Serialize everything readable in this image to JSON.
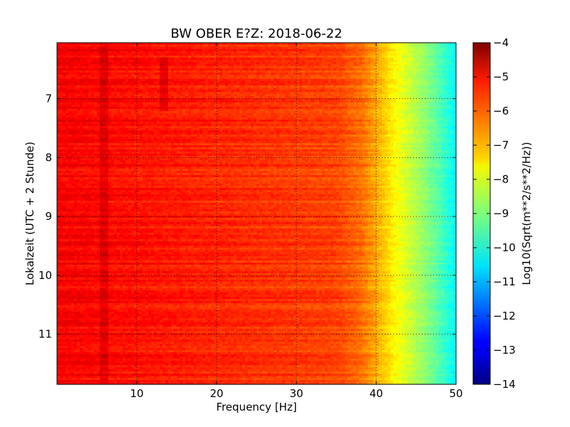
{
  "chart_data": {
    "type": "heatmap",
    "title": "BW OBER E?Z: 2018-06-22",
    "xlabel": "Frequency [Hz]",
    "ylabel": "Lokalzeit (UTC + 2 Stunde)",
    "xlim": [
      0,
      50
    ],
    "ylim": [
      11.85,
      6.05
    ],
    "y_inverted": true,
    "grid": true,
    "x_ticks": [
      "10",
      "20",
      "30",
      "40",
      "50"
    ],
    "x_tick_values": [
      10,
      20,
      30,
      40,
      50
    ],
    "y_ticks": [
      "7",
      "8",
      "9",
      "10",
      "11"
    ],
    "y_tick_values": [
      7,
      8,
      9,
      10,
      11
    ],
    "colorbar": {
      "label": "Log10(Sqrt(m**2/s**2/Hz))",
      "range": [
        -14,
        -4
      ],
      "ticks": [
        "−4",
        "−5",
        "−6",
        "−7",
        "−8",
        "−9",
        "−10",
        "−11",
        "−12",
        "−13",
        "−14"
      ],
      "tick_values": [
        -4,
        -5,
        -6,
        -7,
        -8,
        -9,
        -10,
        -11,
        -12,
        -13,
        -14
      ],
      "colormap": "jet"
    },
    "frequency_profile": {
      "x": [
        0,
        5,
        10,
        15,
        20,
        25,
        30,
        35,
        38,
        40,
        42,
        44,
        46,
        48,
        50
      ],
      "values": [
        -5.2,
        -5.3,
        -5.4,
        -5.5,
        -5.6,
        -5.7,
        -5.8,
        -5.9,
        -6.3,
        -6.9,
        -7.6,
        -8.2,
        -8.8,
        -9.5,
        -10.3
      ]
    },
    "features": [
      {
        "frequency": 6,
        "note": "vertical band of elevated amplitude"
      },
      {
        "frequency": 13.5,
        "time_range": [
          6.3,
          7.2
        ],
        "note": "darker streak"
      }
    ]
  }
}
